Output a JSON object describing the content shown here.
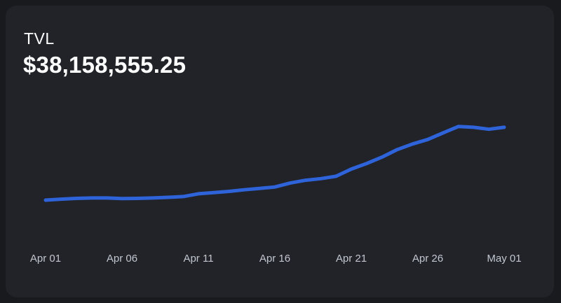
{
  "card": {
    "label": "TVL",
    "value": "$38,158,555.25"
  },
  "colors": {
    "background": "#191a1e",
    "card": "#212329",
    "line": "#2e63d9",
    "text": "#ffffff",
    "tick_text": "#c2c6cf"
  },
  "chart_data": {
    "type": "line",
    "title": "TVL",
    "xlabel": "",
    "ylabel": "",
    "grid": false,
    "legend": "none",
    "x_ticks": [
      "Apr 01",
      "Apr 06",
      "Apr 11",
      "Apr 16",
      "Apr 21",
      "Apr 26",
      "May 01"
    ],
    "x": [
      "Apr 01",
      "Apr 02",
      "Apr 03",
      "Apr 04",
      "Apr 05",
      "Apr 06",
      "Apr 07",
      "Apr 08",
      "Apr 09",
      "Apr 10",
      "Apr 11",
      "Apr 12",
      "Apr 13",
      "Apr 14",
      "Apr 15",
      "Apr 16",
      "Apr 17",
      "Apr 18",
      "Apr 19",
      "Apr 20",
      "Apr 21",
      "Apr 22",
      "Apr 23",
      "Apr 24",
      "Apr 25",
      "Apr 26",
      "Apr 27",
      "Apr 28",
      "Apr 29",
      "Apr 30",
      "May 01"
    ],
    "series": [
      {
        "values": [
          13.0,
          13.5,
          13.9,
          14.1,
          14.1,
          13.8,
          13.9,
          14.1,
          14.4,
          14.8,
          16.2,
          16.8,
          17.4,
          18.2,
          18.9,
          19.6,
          21.6,
          23.0,
          23.8,
          25.0,
          28.6,
          31.4,
          34.6,
          38.4,
          41.2,
          43.5,
          46.8,
          50.0,
          49.6,
          48.6,
          49.6
        ]
      }
    ],
    "ylim": [
      0,
      58
    ]
  }
}
